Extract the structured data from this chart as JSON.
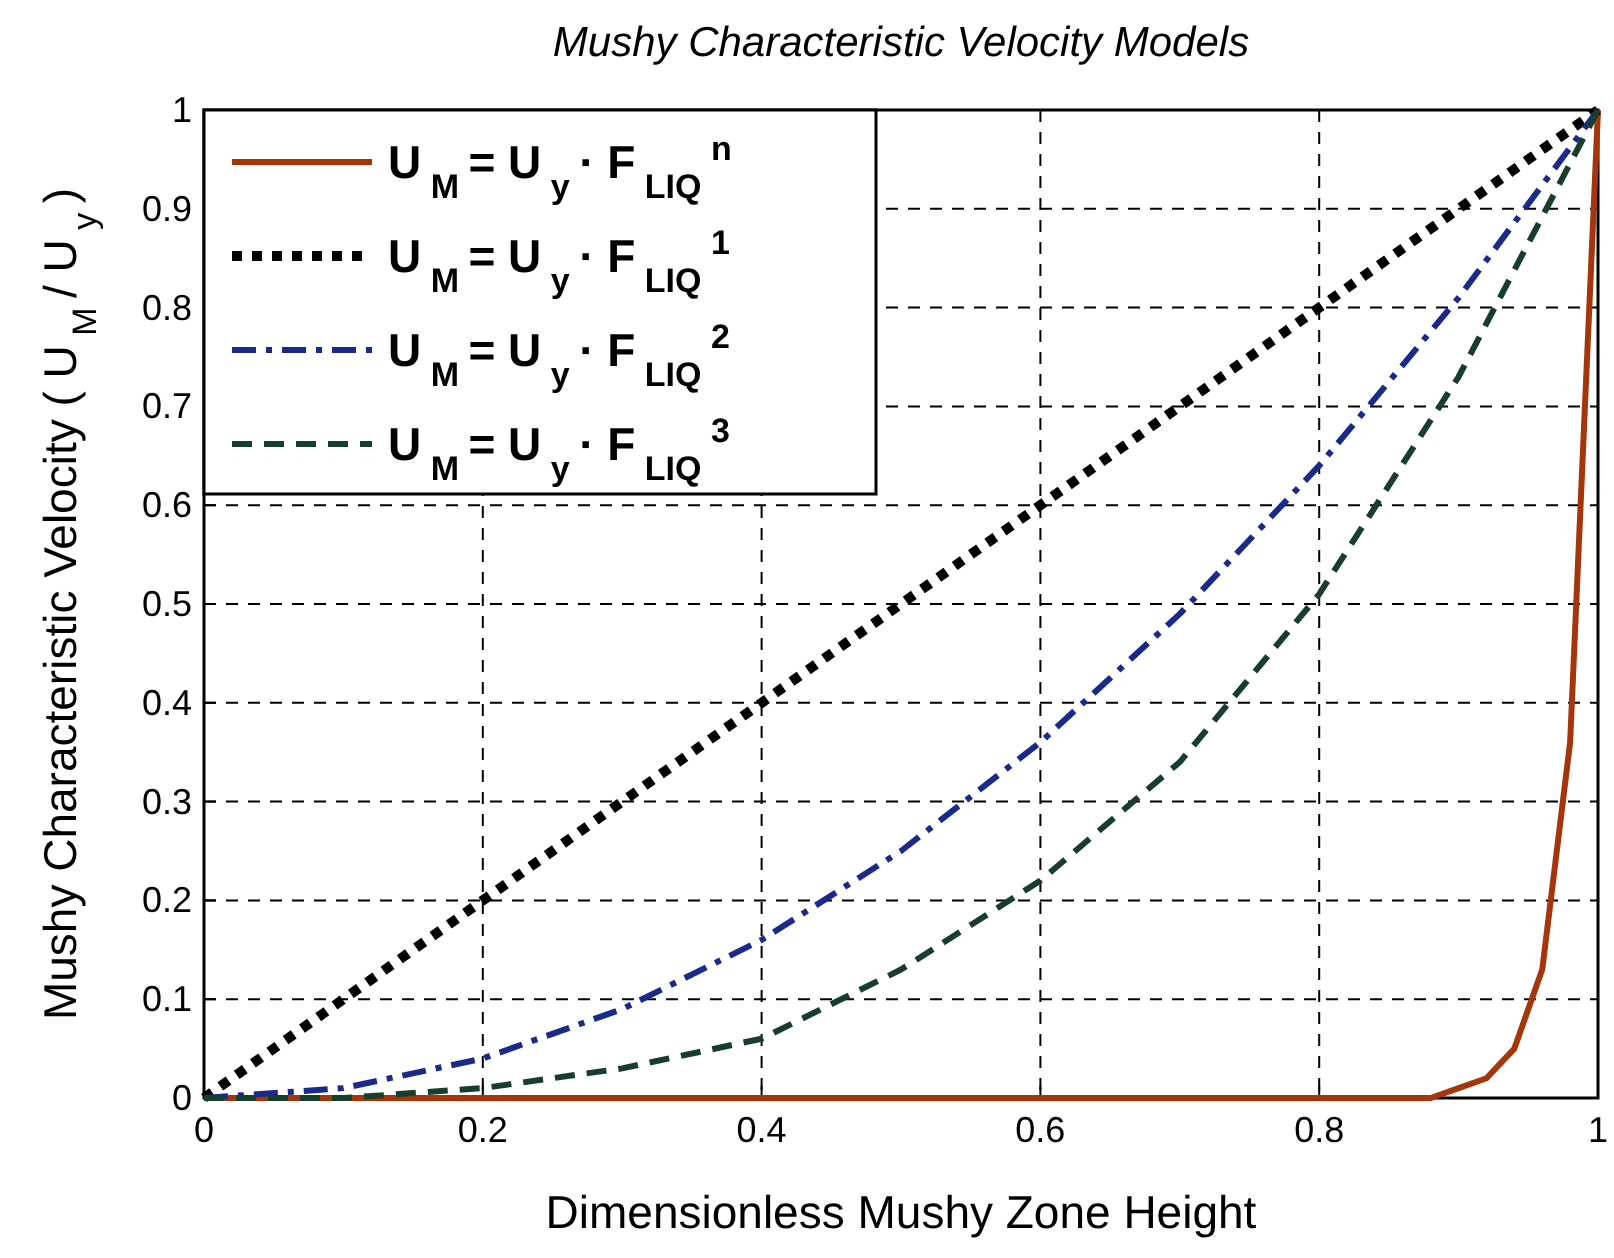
{
  "chart_data": {
    "type": "line",
    "title": "Mushy Characteristic Velocity Models",
    "xlabel": "Dimensionless Mushy Zone Height",
    "ylabel": "Mushy Characteristic Velocity ( U$_{M}$ / U$_{y}$ )",
    "x": [
      0,
      0.1,
      0.2,
      0.3,
      0.4,
      0.5,
      0.6,
      0.7,
      0.8,
      0.9,
      1
    ],
    "series": [
      {
        "name": "U$_{M}$ = U$_{y}$ · F$_{LIQ}$$^{n}$",
        "color": "#a5360a",
        "line_style": "solid",
        "x": [
          0,
          0.2,
          0.4,
          0.6,
          0.8,
          0.86,
          0.88,
          0.9,
          0.92,
          0.94,
          0.96,
          0.98,
          1
        ],
        "values": [
          0,
          0,
          0,
          0,
          0,
          0,
          0,
          0.01,
          0.02,
          0.05,
          0.13,
          0.36,
          1
        ]
      },
      {
        "name": "U$_{M}$ = U$_{y}$ · F$_{LIQ}$$^{1}$",
        "color": "#000000",
        "line_style": "dotted",
        "values": [
          0,
          0.1,
          0.2,
          0.3,
          0.4,
          0.5,
          0.6,
          0.7,
          0.8,
          0.9,
          1
        ]
      },
      {
        "name": "U$_{M}$ = U$_{y}$ · F$_{LIQ}$$^{2}$",
        "color": "#1a2a8c",
        "line_style": "dashdot",
        "values": [
          0,
          0.01,
          0.04,
          0.09,
          0.16,
          0.25,
          0.36,
          0.49,
          0.64,
          0.81,
          1
        ]
      },
      {
        "name": "U$_{M}$ = U$_{y}$ · F$_{LIQ}$$^{3}$",
        "color": "#173d2c",
        "line_style": "dashed",
        "values": [
          0,
          0,
          0.01,
          0.03,
          0.06,
          0.13,
          0.22,
          0.34,
          0.51,
          0.73,
          1
        ]
      }
    ],
    "xlim": [
      0,
      1
    ],
    "xticks": [
      0,
      0.2,
      0.4,
      0.6,
      0.8,
      1
    ],
    "ylim": [
      0,
      1
    ],
    "yticks": [
      0,
      0.1,
      0.2,
      0.3,
      0.4,
      0.5,
      0.6,
      0.7,
      0.8,
      0.9,
      1
    ],
    "grid": true,
    "legend": "top left",
    "marker": "none"
  }
}
